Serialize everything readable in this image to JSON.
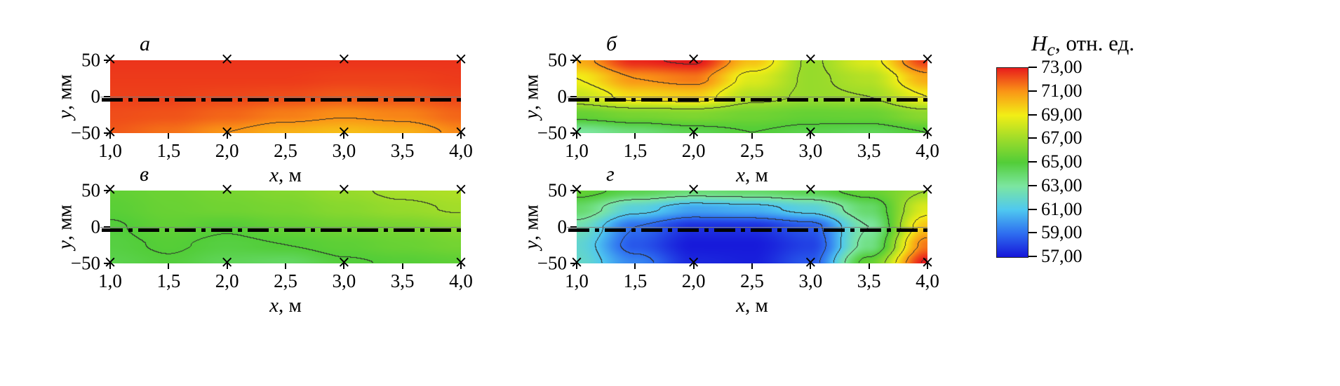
{
  "panels": [
    {
      "id": "a",
      "title": "а",
      "xlabel_var": "x",
      "xlabel_rest": ", м",
      "ylabel_var": "y",
      "ylabel_rest": ", мм",
      "xtick_labels": [
        "1,0",
        "1,5",
        "2,0",
        "2,5",
        "3,0",
        "3,5",
        "4,0"
      ],
      "ytick_labels": [
        "50",
        "0",
        "−50"
      ]
    },
    {
      "id": "b",
      "title": "б",
      "xlabel_var": "x",
      "xlabel_rest": ", м",
      "ylabel_var": "y",
      "ylabel_rest": ", мм",
      "xtick_labels": [
        "1,0",
        "1,5",
        "2,0",
        "2,5",
        "3,0",
        "3,5",
        "4,0"
      ],
      "ytick_labels": [
        "50",
        "0",
        "−50"
      ]
    },
    {
      "id": "v",
      "title": "в",
      "xlabel_var": "x",
      "xlabel_rest": ", м",
      "ylabel_var": "y",
      "ylabel_rest": ", мм",
      "xtick_labels": [
        "1,0",
        "1,5",
        "2,0",
        "2,5",
        "3,0",
        "3,5",
        "4,0"
      ],
      "ytick_labels": [
        "50",
        "0",
        "−50"
      ]
    },
    {
      "id": "g",
      "title": "г",
      "xlabel_var": "x",
      "xlabel_rest": ", м",
      "ylabel_var": "y",
      "ylabel_rest": ", мм",
      "xtick_labels": [
        "1,0",
        "1,5",
        "2,0",
        "2,5",
        "3,0",
        "3,5",
        "4,0"
      ],
      "ytick_labels": [
        "50",
        "0",
        "−50"
      ]
    }
  ],
  "colorbar": {
    "title_var": "H",
    "title_sub": "c",
    "title_rest": ", отн. ед.",
    "tick_labels": [
      "73,00",
      "71,00",
      "69,00",
      "67,00",
      "65,00",
      "63,00",
      "61,00",
      "59,00",
      "57,00"
    ],
    "min": 57,
    "max": 73,
    "colormap": [
      {
        "value": 57,
        "color": "#1616d9"
      },
      {
        "value": 59,
        "color": "#2e6ef0"
      },
      {
        "value": 61,
        "color": "#4fc8f0"
      },
      {
        "value": 63,
        "color": "#7ce6a0"
      },
      {
        "value": 65,
        "color": "#52cd38"
      },
      {
        "value": 67,
        "color": "#9edc2a"
      },
      {
        "value": 69,
        "color": "#f2ee16"
      },
      {
        "value": 71,
        "color": "#fa9616"
      },
      {
        "value": 73,
        "color": "#e81c1c"
      },
      {
        "value": 74.5,
        "color": "#a50d0d"
      }
    ]
  },
  "chart_data": [
    {
      "type": "heatmap",
      "id": "a",
      "panel_label": "а",
      "xlabel": "x, м",
      "ylabel": "y, мм",
      "value_label": "Hc, отн. ед.",
      "x": [
        1.0,
        1.5,
        2.0,
        2.5,
        3.0,
        3.5,
        4.0
      ],
      "y": [
        50,
        25,
        0,
        -25,
        -50
      ],
      "xticks": [
        1.0,
        1.5,
        2.0,
        2.5,
        3.0,
        3.5,
        4.0
      ],
      "yticks": [
        50,
        0,
        -50
      ],
      "xlim": [
        1.0,
        4.0
      ],
      "ylim": [
        -50,
        50
      ],
      "vlim": [
        57,
        73
      ],
      "values": [
        [
          72.6,
          72.6,
          72.6,
          72.6,
          72.6,
          72.6,
          72.6
        ],
        [
          72.5,
          72.5,
          72.5,
          72.5,
          72.4,
          72.4,
          72.5
        ],
        [
          72.4,
          72.4,
          72.3,
          72.2,
          72.0,
          72.1,
          72.3
        ],
        [
          72.2,
          72.1,
          71.8,
          71.4,
          71.1,
          71.3,
          71.8
        ],
        [
          72.0,
          71.6,
          71.0,
          70.4,
          70.1,
          70.4,
          71.2
        ]
      ],
      "markers": {
        "x": [
          1,
          2,
          3,
          4
        ],
        "y": [
          50,
          -50
        ]
      },
      "scan_line_y": -4
    },
    {
      "type": "heatmap",
      "id": "b",
      "panel_label": "б",
      "xlabel": "x, м",
      "ylabel": "y, мм",
      "value_label": "Hc, отн. ед.",
      "x": [
        1.0,
        1.5,
        2.0,
        2.5,
        3.0,
        3.5,
        4.0
      ],
      "y": [
        50,
        25,
        0,
        -25,
        -50
      ],
      "xticks": [
        1.0,
        1.5,
        2.0,
        2.5,
        3.0,
        3.5,
        4.0
      ],
      "yticks": [
        50,
        0,
        -50
      ],
      "xlim": [
        1.0,
        4.0
      ],
      "ylim": [
        -50,
        50
      ],
      "vlim": [
        57,
        73
      ],
      "values": [
        [
          70.5,
          72.8,
          73.2,
          70.0,
          66.8,
          68.5,
          72.5
        ],
        [
          69.0,
          71.0,
          71.5,
          68.5,
          66.8,
          67.5,
          70.5
        ],
        [
          68.0,
          69.5,
          69.8,
          67.5,
          66.8,
          67.0,
          69.0
        ],
        [
          65.5,
          66.0,
          66.2,
          65.8,
          65.5,
          65.6,
          66.5
        ],
        [
          63.0,
          63.8,
          64.5,
          65.0,
          64.6,
          64.4,
          65.0
        ]
      ],
      "markers": {
        "x": [
          1,
          2,
          3,
          4
        ],
        "y": [
          50,
          -50
        ]
      },
      "scan_line_y": -4
    },
    {
      "type": "heatmap",
      "id": "v",
      "panel_label": "в",
      "xlabel": "x, м",
      "ylabel": "y, мм",
      "value_label": "Hc, отн. ед.",
      "x": [
        1.0,
        1.5,
        2.0,
        2.5,
        3.0,
        3.5,
        4.0
      ],
      "y": [
        50,
        25,
        0,
        -25,
        -50
      ],
      "xticks": [
        1.0,
        1.5,
        2.0,
        2.5,
        3.0,
        3.5,
        4.0
      ],
      "yticks": [
        50,
        0,
        -50
      ],
      "xlim": [
        1.0,
        4.0
      ],
      "ylim": [
        -50,
        50
      ],
      "vlim": [
        57,
        73
      ],
      "values": [
        [
          65.4,
          65.7,
          66.0,
          66.3,
          66.8,
          67.2,
          67.4
        ],
        [
          65.2,
          65.6,
          65.8,
          66.0,
          66.4,
          66.8,
          67.1
        ],
        [
          64.9,
          65.4,
          65.1,
          65.5,
          65.8,
          66.0,
          66.4
        ],
        [
          64.8,
          65.1,
          64.8,
          65.0,
          65.3,
          65.6,
          65.9
        ],
        [
          64.6,
          64.9,
          64.4,
          64.2,
          64.9,
          65.1,
          65.3
        ]
      ],
      "markers": {
        "x": [
          1,
          2,
          3,
          4
        ],
        "y": [
          50,
          -50
        ]
      },
      "scan_line_y": -4
    },
    {
      "type": "heatmap",
      "id": "g",
      "panel_label": "г",
      "xlabel": "x, м",
      "ylabel": "y, мм",
      "value_label": "Hc, отн. ед.",
      "x": [
        1.0,
        1.5,
        2.0,
        2.5,
        3.0,
        3.5,
        4.0
      ],
      "y": [
        50,
        25,
        0,
        -25,
        -50
      ],
      "xticks": [
        1.0,
        1.5,
        2.0,
        2.5,
        3.0,
        3.5,
        4.0
      ],
      "yticks": [
        50,
        0,
        -50
      ],
      "xlim": [
        1.0,
        4.0
      ],
      "ylim": [
        -50,
        50
      ],
      "vlim": [
        57,
        73
      ],
      "values": [
        [
          65.5,
          64.5,
          63.8,
          64.0,
          64.5,
          65.5,
          67.0
        ],
        [
          64.0,
          61.5,
          60.2,
          60.5,
          61.5,
          64.0,
          68.5
        ],
        [
          62.5,
          59.0,
          57.6,
          57.6,
          58.5,
          63.0,
          70.0
        ],
        [
          61.8,
          58.5,
          57.1,
          57.1,
          58.0,
          63.5,
          71.5
        ],
        [
          62.0,
          59.5,
          57.4,
          57.2,
          58.5,
          65.5,
          73.2
        ]
      ],
      "markers": {
        "x": [
          1,
          2,
          3,
          4
        ],
        "y": [
          50,
          -50
        ]
      },
      "scan_line_y": -4
    }
  ]
}
